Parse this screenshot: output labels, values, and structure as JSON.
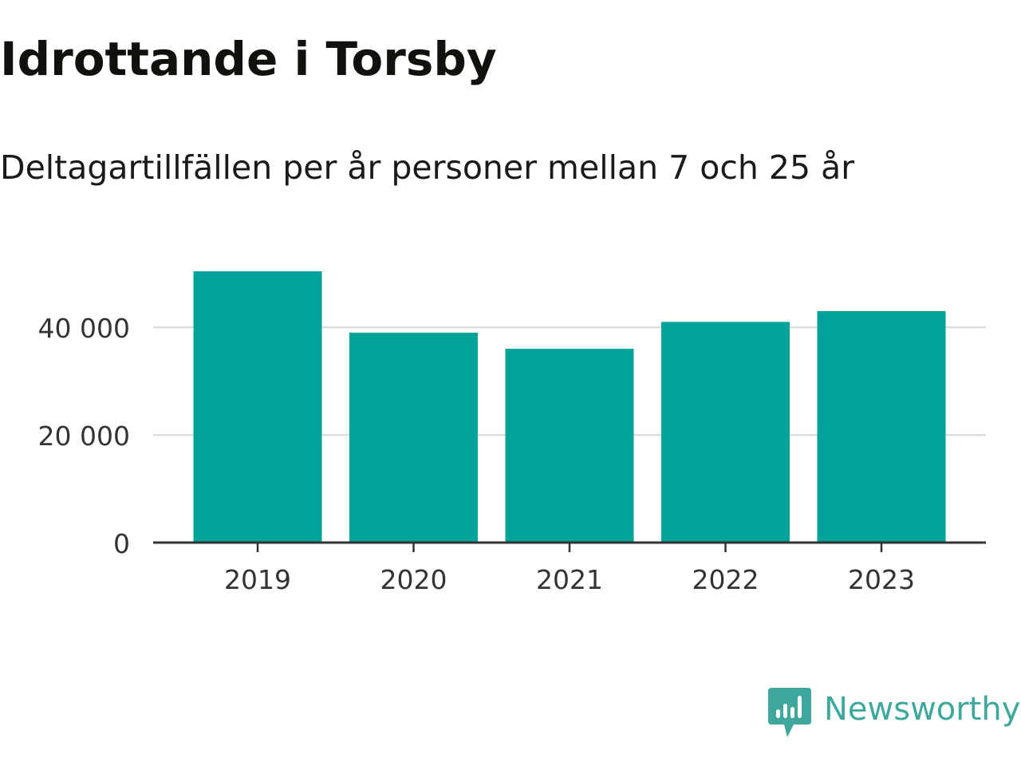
{
  "title": "Idrottande i Torsby",
  "subtitle": "Deltagartillfällen per år personer mellan 7 och 25 år",
  "brand": {
    "name": "Newsworthy",
    "logo_icon": "newsworthy-logo-icon",
    "color": "#3fa89c"
  },
  "chart_data": {
    "type": "bar",
    "title": "Idrottande i Torsby",
    "subtitle": "Deltagartillfällen per år personer mellan 7 och 25 år",
    "xlabel": "",
    "ylabel": "",
    "categories": [
      "2019",
      "2020",
      "2021",
      "2022",
      "2023"
    ],
    "values": [
      50400,
      39000,
      36000,
      41000,
      43000
    ],
    "ylim": [
      0,
      52000
    ],
    "yticks": [
      0,
      20000,
      40000
    ],
    "ytick_labels": [
      "0",
      "20 000",
      "40 000"
    ],
    "grid": true,
    "legend": "none",
    "bar_color": "#00a39a",
    "grid_color": "#dddddd",
    "axis_color": "#333333"
  }
}
